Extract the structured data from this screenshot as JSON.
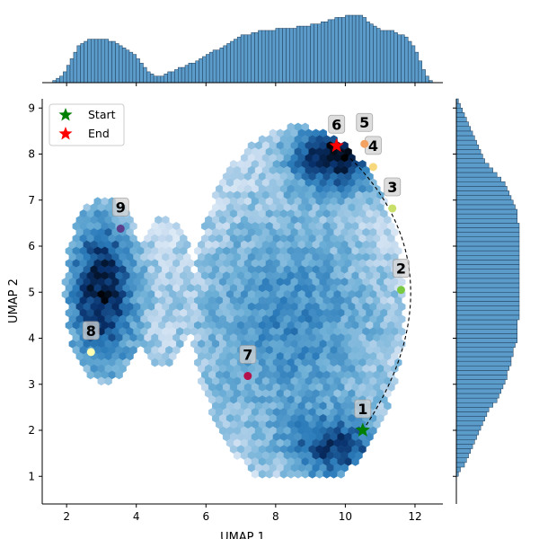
{
  "chart_data": {
    "type": "scatter",
    "subtype": "umap-hexbin-joint-plot-with-marginal-histograms",
    "xlabel": "UMAP 1",
    "ylabel": "UMAP 2",
    "xlim": [
      1.3,
      12.8
    ],
    "ylim": [
      0.4,
      9.2
    ],
    "x_ticks": [
      2,
      4,
      6,
      8,
      10,
      12
    ],
    "y_ticks": [
      1,
      2,
      3,
      4,
      5,
      6,
      7,
      8,
      9
    ],
    "x_tick_labels": [
      "2",
      "4",
      "6",
      "8",
      "10",
      "12"
    ],
    "y_tick_labels": [
      "1",
      "2",
      "3",
      "4",
      "5",
      "6",
      "7",
      "8",
      "9"
    ],
    "grid": false,
    "legend": {
      "placement": "top-left",
      "entries": [
        {
          "label": "Start",
          "marker": "star",
          "color": "#008000"
        },
        {
          "label": "End",
          "marker": "star",
          "color": "#ff0000"
        }
      ]
    },
    "density_colormap": [
      "#ffffff",
      "#c6dbef",
      "#6baed6",
      "#2b7bba",
      "#08306b",
      "#000000"
    ],
    "density_clusters": [
      {
        "name": "left",
        "center": [
          3.0,
          5.0
        ],
        "spread": [
          0.75,
          1.3
        ],
        "weight": 1.0
      },
      {
        "name": "right-top",
        "center": [
          9.8,
          8.0
        ],
        "spread": [
          1.0,
          0.55
        ],
        "weight": 1.0
      },
      {
        "name": "right-body",
        "center": [
          8.4,
          4.3
        ],
        "spread": [
          2.2,
          2.1
        ],
        "weight": 0.55
      },
      {
        "name": "right-bottom",
        "center": [
          9.8,
          1.6
        ],
        "spread": [
          1.0,
          0.5
        ],
        "weight": 0.7
      }
    ],
    "points": [
      {
        "label": "1",
        "x": 10.5,
        "y": 2.0,
        "color": "#008000",
        "marker": "star"
      },
      {
        "label": "2",
        "x": 11.6,
        "y": 5.05,
        "color": "#7ac943",
        "marker": "circle"
      },
      {
        "label": "3",
        "x": 11.35,
        "y": 6.82,
        "color": "#c8e06a",
        "marker": "circle"
      },
      {
        "label": "4",
        "x": 10.8,
        "y": 7.72,
        "color": "#f7d87c",
        "marker": "circle"
      },
      {
        "label": "5",
        "x": 10.55,
        "y": 8.22,
        "color": "#f4a261",
        "marker": "circle"
      },
      {
        "label": "6",
        "x": 9.75,
        "y": 8.18,
        "color": "#ff0000",
        "marker": "star"
      },
      {
        "label": "7",
        "x": 7.2,
        "y": 3.18,
        "color": "#b5124b",
        "marker": "circle"
      },
      {
        "label": "8",
        "x": 2.7,
        "y": 3.7,
        "color": "#ffffb3",
        "marker": "circle"
      },
      {
        "label": "9",
        "x": 3.55,
        "y": 6.38,
        "color": "#5b3f8c",
        "marker": "circle"
      }
    ],
    "trajectory": {
      "from_label": "1",
      "to_label": "6",
      "style": "dashed",
      "color": "#000000"
    },
    "marginal_x_histogram": {
      "bin_start": 1.3,
      "bin_width": 0.1,
      "counts": [
        0,
        0,
        0,
        1,
        2,
        3,
        5,
        8,
        11,
        14,
        17,
        18,
        19,
        20,
        20,
        20,
        20,
        20,
        20,
        19,
        19,
        18,
        17,
        16,
        15,
        14,
        13,
        11,
        9,
        7,
        5,
        4,
        3,
        3,
        3,
        4,
        5,
        5,
        6,
        7,
        7,
        8,
        9,
        9,
        10,
        11,
        12,
        13,
        14,
        15,
        15,
        16,
        17,
        18,
        19,
        20,
        21,
        22,
        22,
        22,
        23,
        23,
        24,
        24,
        24,
        24,
        24,
        25,
        25,
        25,
        25,
        25,
        25,
        26,
        26,
        26,
        26,
        27,
        27,
        27,
        28,
        28,
        29,
        29,
        30,
        30,
        30,
        31,
        31,
        31,
        31,
        31,
        30,
        28,
        27,
        26,
        25,
        24,
        24,
        24,
        24,
        23,
        22,
        22,
        21,
        19,
        17,
        14,
        10,
        6,
        3,
        1,
        0,
        0,
        0,
        0
      ]
    },
    "marginal_y_histogram": {
      "bin_start": 0.4,
      "bin_width": 0.1,
      "counts": [
        0,
        0,
        0,
        0,
        0,
        0,
        1,
        2,
        4,
        5,
        6,
        7,
        8,
        9,
        10,
        11,
        12,
        13,
        14,
        15,
        16,
        18,
        20,
        21,
        22,
        23,
        24,
        25,
        25,
        26,
        27,
        27,
        28,
        28,
        29,
        30,
        30,
        30,
        30,
        30,
        31,
        31,
        31,
        31,
        31,
        31,
        31,
        31,
        31,
        31,
        31,
        31,
        31,
        31,
        31,
        31,
        31,
        31,
        31,
        31,
        31,
        30,
        30,
        30,
        29,
        28,
        27,
        26,
        25,
        24,
        22,
        20,
        18,
        16,
        14,
        13,
        12,
        11,
        10,
        9,
        8,
        7,
        6,
        5,
        4,
        3,
        2,
        1,
        0,
        0
      ]
    },
    "marginal_color": "#5b9ccb",
    "marginal_edge_color": "#1f3b57"
  }
}
